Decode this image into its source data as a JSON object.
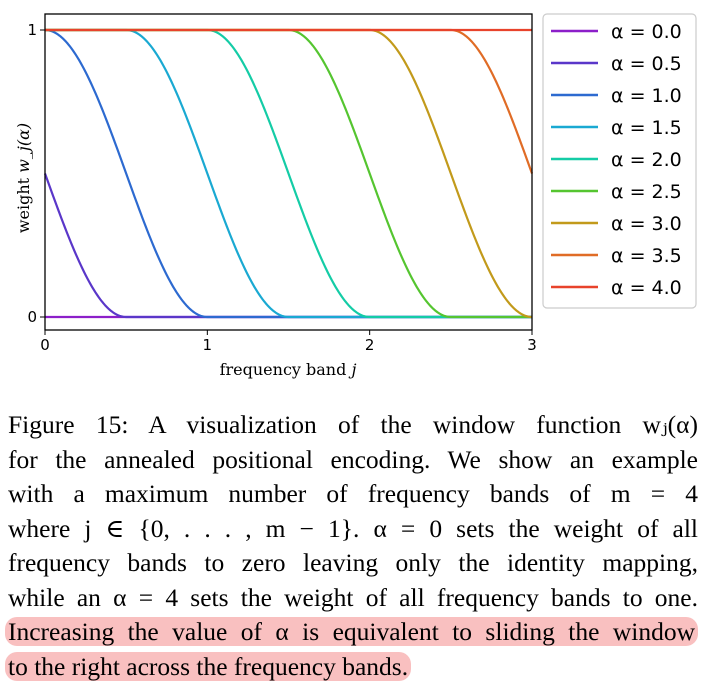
{
  "chart_data": {
    "type": "line",
    "title": "",
    "xlabel": "frequency band j",
    "ylabel": "weight w_j(α)",
    "xlim": [
      0,
      3
    ],
    "ylim": [
      0,
      1
    ],
    "x_ticks": [
      "0",
      "1",
      "2",
      "3"
    ],
    "y_ticks": [
      "0",
      "1"
    ],
    "grid": false,
    "legend_position": "outside-right",
    "function": "w_j(α) = (1 - cos(π · clamp(α - j, 0, 1))) / 2",
    "series": [
      {
        "name": "α = 0.0",
        "alpha": 0.0,
        "color": "#8c1fc9"
      },
      {
        "name": "α = 0.5",
        "alpha": 0.5,
        "color": "#5a37c9"
      },
      {
        "name": "α = 1.0",
        "alpha": 1.0,
        "color": "#2d6ad0"
      },
      {
        "name": "α = 1.5",
        "alpha": 1.5,
        "color": "#1aa9d2"
      },
      {
        "name": "α = 2.0",
        "alpha": 2.0,
        "color": "#14cca6"
      },
      {
        "name": "α = 2.5",
        "alpha": 2.5,
        "color": "#55c530"
      },
      {
        "name": "α = 3.0",
        "alpha": 3.0,
        "color": "#c29a1b"
      },
      {
        "name": "α = 3.5",
        "alpha": 3.5,
        "color": "#e06c26"
      },
      {
        "name": "α = 4.0",
        "alpha": 4.0,
        "color": "#e8432b"
      }
    ]
  },
  "caption": {
    "line1": "Figure 15: A visualization of the window function wⱼ(α)",
    "line2": "for the annealed positional encoding. We show an example",
    "line3": "with a maximum number of frequency bands of m = 4",
    "line4": "where j ∈ {0, . . . , m − 1}.  α = 0 sets the weight of all",
    "line5": "frequency bands to zero leaving only the identity mapping,",
    "line6": "while an α = 4 sets the weight of all frequency bands to one.",
    "line7": "Increasing the value of α is equivalent to sliding the window",
    "line8": "to the right across the frequency bands."
  }
}
